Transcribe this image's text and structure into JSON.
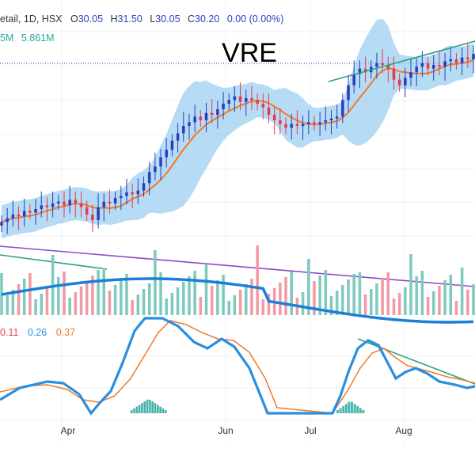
{
  "header": {
    "symbol_line": "etail, 1D, HSX",
    "o_label": "O",
    "o_value": "30.05",
    "h_label": "H",
    "h_value": "31.50",
    "l_label": "L",
    "l_value": "30.05",
    "c_label": "C",
    "c_value": "30.20",
    "change": "0.00 (0.00%)",
    "volume_ma_label": "5M",
    "volume_ma_value": "5.861M",
    "osc_values": [
      "0.11",
      "0.26",
      "0.37"
    ]
  },
  "watermark": "VRE",
  "colors": {
    "up": "#2a3fbf",
    "down": "#e83a4c",
    "band_fill": "#8ec8f0",
    "ma_line": "#f07a28",
    "trend_green": "#2aa07a",
    "trend_purple": "#8a4cc8",
    "vol_up": "#7fc9bf",
    "vol_down": "#f29aa3",
    "vol_ma": "#1a7fd8",
    "osc_fast": "#2a8ee0",
    "osc_slow": "#f07a28",
    "hist": "#26a69a"
  },
  "chart_data": {
    "type": "candlestick",
    "title": "VRE",
    "x_labels": [
      "Apr",
      "Jun",
      "Jul",
      "Aug"
    ],
    "price_series": [
      26.2,
      26.4,
      26.6,
      26.5,
      26.8,
      26.7,
      26.9,
      27.1,
      27.0,
      27.2,
      27.3,
      27.1,
      27.4,
      27.2,
      27.0,
      26.6,
      26.3,
      27.0,
      27.3,
      27.2,
      27.5,
      27.6,
      27.8,
      27.7,
      27.9,
      28.3,
      28.9,
      29.2,
      29.7,
      30.1,
      30.6,
      31.0,
      31.4,
      31.6,
      31.9,
      31.7,
      32.1,
      32.0,
      32.3,
      32.6,
      32.8,
      33.0,
      32.7,
      32.9,
      32.8,
      32.6,
      32.4,
      32.0,
      31.7,
      31.5,
      31.3,
      31.5,
      31.4,
      31.5,
      31.6,
      31.5,
      31.6,
      31.7,
      31.8,
      31.9,
      32.8,
      33.6,
      34.2,
      34.5,
      34.3,
      34.6,
      34.8,
      34.7,
      34.5,
      33.9,
      33.6,
      34.0,
      34.3,
      34.6,
      34.8,
      34.5,
      34.7,
      34.6,
      34.9,
      35.0,
      34.8,
      35.1,
      35.0,
      35.3
    ],
    "last_close": 30.2,
    "volume_ma": 5.861,
    "oscillator_values": [
      0.11,
      0.26,
      0.37
    ]
  }
}
